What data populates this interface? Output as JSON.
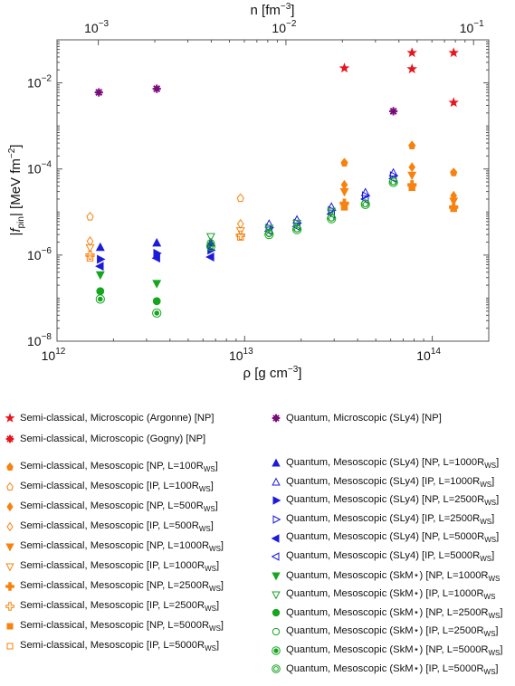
{
  "chart_data": {
    "type": "scatter",
    "title": "",
    "xlabel": "ρ [g cm⁻³]",
    "x2label": "n [fm⁻³]",
    "ylabel": "|f_pin| [MeV fm⁻²]",
    "xscale": "log",
    "yscale": "log",
    "xlim": [
      1000000000000.0,
      200000000000000.0
    ],
    "ylim": [
      1e-08,
      0.1
    ],
    "x_ticks": [
      "10^12",
      "10^13",
      "10^14"
    ],
    "x2_ticks": [
      "10^-3",
      "10^-2",
      "10^-1"
    ],
    "y_ticks": [
      "10^-8",
      "10^-6",
      "10^-4",
      "10^-2"
    ],
    "grid": false,
    "legend_placement": "below",
    "series": [
      {
        "name": "Semi-classical, Microscopic (Argonne) [NP]",
        "color": "#e8141e",
        "marker": "star",
        "filled": true,
        "points": [
          [
            34000000000000.0,
            0.022
          ],
          [
            78000000000000.0,
            0.05
          ],
          [
            78000000000000.0,
            0.021
          ],
          [
            130000000000000.0,
            0.05
          ],
          [
            130000000000000.0,
            0.0035
          ]
        ]
      },
      {
        "name": "Semi-classical, Microscopic (Gogny) [NP]",
        "color": "#e8141e",
        "marker": "asterisk",
        "filled": true,
        "points": []
      },
      {
        "name": "Quantum, Microscopic (SLy4) [NP]",
        "color": "#7b0a7c",
        "marker": "asterisk",
        "filled": true,
        "points": [
          [
            1670000000000.0,
            0.006
          ],
          [
            3400000000000.0,
            0.0073
          ],
          [
            62000000000000.0,
            0.0022
          ]
        ]
      },
      {
        "name": "Semi-classical, Mesoscopic [NP, L=100R_WS]",
        "color": "#f7820f",
        "marker": "diamond-up",
        "filled": true,
        "points": [
          [
            34000000000000.0,
            0.00014
          ],
          [
            78000000000000.0,
            0.00035
          ],
          [
            130000000000000.0,
            8.3e-05
          ]
        ]
      },
      {
        "name": "Semi-classical, Mesoscopic [IP, L=100R_WS]",
        "color": "#f7820f",
        "marker": "diamond-up",
        "filled": false,
        "points": [
          [
            1500000000000.0,
            7.8e-06
          ],
          [
            9500000000000.0,
            2.1e-05
          ]
        ]
      },
      {
        "name": "Semi-classical, Mesoscopic [NP, L=500R_WS]",
        "color": "#f7820f",
        "marker": "diamond",
        "filled": true,
        "points": [
          [
            34000000000000.0,
            4.3e-05
          ],
          [
            78000000000000.0,
            0.00011
          ],
          [
            130000000000000.0,
            2.4e-05
          ]
        ]
      },
      {
        "name": "Semi-classical, Mesoscopic [IP, L=500R_WS]",
        "color": "#f7820f",
        "marker": "diamond",
        "filled": false,
        "points": [
          [
            1500000000000.0,
            2.1e-06
          ],
          [
            9500000000000.0,
            5.3e-06
          ]
        ]
      },
      {
        "name": "Semi-classical, Mesoscopic [NP, L=1000R_WS]",
        "color": "#f7820f",
        "marker": "tri-down",
        "filled": true,
        "points": [
          [
            34000000000000.0,
            3e-05
          ],
          [
            78000000000000.0,
            7.2e-05
          ],
          [
            130000000000000.0,
            1.8e-05
          ]
        ]
      },
      {
        "name": "Semi-classical, Mesoscopic [IP, L=1000R_WS]",
        "color": "#f7820f",
        "marker": "tri-down",
        "filled": false,
        "points": [
          [
            1500000000000.0,
            1.5e-06
          ],
          [
            9500000000000.0,
            3.7e-06
          ]
        ]
      },
      {
        "name": "Semi-classical, Mesoscopic [NP, L=2500R_WS]",
        "color": "#f7820f",
        "marker": "plus",
        "filled": true,
        "points": [
          [
            34000000000000.0,
            1.6e-05
          ],
          [
            78000000000000.0,
            4.3e-05
          ],
          [
            130000000000000.0,
            1.3e-05
          ]
        ]
      },
      {
        "name": "Semi-classical, Mesoscopic [IP, L=2500R_WS]",
        "color": "#f7820f",
        "marker": "plus",
        "filled": false,
        "points": [
          [
            1500000000000.0,
            1e-06
          ],
          [
            9500000000000.0,
            2.9e-06
          ]
        ]
      },
      {
        "name": "Semi-classical, Mesoscopic [NP, L=5000R_WS]",
        "color": "#f7820f",
        "marker": "square",
        "filled": true,
        "points": [
          [
            34000000000000.0,
            1.3e-05
          ],
          [
            78000000000000.0,
            3.7e-05
          ],
          [
            130000000000000.0,
            1.2e-05
          ]
        ]
      },
      {
        "name": "Semi-classical, Mesoscopic [IP, L=5000R_WS]",
        "color": "#f7820f",
        "marker": "square",
        "filled": false,
        "points": [
          [
            1500000000000.0,
            8.5e-07
          ],
          [
            9500000000000.0,
            2.6e-06
          ]
        ]
      },
      {
        "name": "Quantum, Mesoscopic (SLy4) [NP, L=1000R_WS]",
        "color": "#1b1bdc",
        "marker": "tri-up",
        "filled": true,
        "points": [
          [
            1700000000000.0,
            1.5e-06
          ],
          [
            3400000000000.0,
            1.9e-06
          ],
          [
            6600000000000.0,
            1.9e-06
          ]
        ]
      },
      {
        "name": "Quantum, Mesoscopic (SLy4) [IP, L=1000R_WS]",
        "color": "#1b1bdc",
        "marker": "tri-up",
        "filled": false,
        "points": [
          [
            13500000000000.0,
            5.2e-06
          ],
          [
            19000000000000.0,
            6.5e-06
          ],
          [
            29000000000000.0,
            1.3e-05
          ],
          [
            44000000000000.0,
            2.8e-05
          ],
          [
            62000000000000.0,
            8e-05
          ]
        ]
      },
      {
        "name": "Quantum, Mesoscopic (SLy4) [NP, L=2500R_WS]",
        "color": "#1b1bdc",
        "marker": "tri-right",
        "filled": true,
        "points": [
          [
            1700000000000.0,
            8e-07
          ],
          [
            3400000000000.0,
            1.1e-06
          ],
          [
            6600000000000.0,
            1.3e-06
          ]
        ]
      },
      {
        "name": "Quantum, Mesoscopic (SLy4) [IP, L=2500R_WS]",
        "color": "#1b1bdc",
        "marker": "tri-right",
        "filled": false,
        "points": [
          [
            13500000000000.0,
            4.3e-06
          ],
          [
            19000000000000.0,
            5.5e-06
          ],
          [
            29000000000000.0,
            1.1e-05
          ],
          [
            44000000000000.0,
            2.4e-05
          ],
          [
            62000000000000.0,
            7e-05
          ]
        ]
      },
      {
        "name": "Quantum, Mesoscopic (SLy4) [NP, L=5000R_WS]",
        "color": "#1b1bdc",
        "marker": "tri-left",
        "filled": true,
        "points": [
          [
            1700000000000.0,
            5.5e-07
          ],
          [
            3400000000000.0,
            8.5e-07
          ],
          [
            6600000000000.0,
            9e-07
          ]
        ]
      },
      {
        "name": "Quantum, Mesoscopic (SLy4) [IP, L=5000R_WS]",
        "color": "#1b1bdc",
        "marker": "tri-left",
        "filled": false,
        "points": [
          [
            13500000000000.0,
            3.6e-06
          ],
          [
            19000000000000.0,
            4.6e-06
          ],
          [
            29000000000000.0,
            9e-06
          ],
          [
            44000000000000.0,
            2e-05
          ],
          [
            62000000000000.0,
            6e-05
          ]
        ]
      },
      {
        "name": "Quantum, Mesoscopic (SkM*) [NP, L=1000R_WS",
        "color": "#15a51f",
        "marker": "tri-down",
        "filled": true,
        "points": [
          [
            1700000000000.0,
            3.5e-07
          ],
          [
            3400000000000.0,
            2.2e-07
          ]
        ]
      },
      {
        "name": "Quantum, Mesoscopic (SkM*) [IP, L=1000R_WS",
        "color": "#15a51f",
        "marker": "tri-down",
        "filled": false,
        "points": [
          [
            6600000000000.0,
            2.7e-06
          ],
          [
            13500000000000.0,
            4.2e-06
          ],
          [
            19000000000000.0,
            5.5e-06
          ],
          [
            29000000000000.0,
            1.05e-05
          ]
        ]
      },
      {
        "name": "Quantum, Mesoscopic (SkM*) [NP, L=2500R_WS]",
        "color": "#15a51f",
        "marker": "circle",
        "filled": true,
        "points": [
          [
            1700000000000.0,
            1.45e-07
          ],
          [
            3400000000000.0,
            8.5e-08
          ]
        ]
      },
      {
        "name": "Quantum, Mesoscopic (SkM*) [IP, L=2500R_WS]",
        "color": "#15a51f",
        "marker": "circle",
        "filled": false,
        "points": [
          [
            6600000000000.0,
            1.9e-06
          ],
          [
            13500000000000.0,
            3.3e-06
          ],
          [
            19000000000000.0,
            4.2e-06
          ],
          [
            29000000000000.0,
            7.5e-06
          ],
          [
            44000000000000.0,
            1.6e-05
          ],
          [
            62000000000000.0,
            5.2e-05
          ]
        ]
      },
      {
        "name": "Quantum, Mesoscopic (SkM*) [NP, L=5000R_WS]",
        "color": "#15a51f",
        "marker": "circle-dot",
        "filled": true,
        "points": [
          [
            1700000000000.0,
            9.5e-08
          ],
          [
            3400000000000.0,
            4.5e-08
          ]
        ]
      },
      {
        "name": "Quantum, Mesoscopic (SkM*) [IP, L=5000R_WS]",
        "color": "#15a51f",
        "marker": "circle-ring",
        "filled": false,
        "points": [
          [
            6600000000000.0,
            1.6e-06
          ],
          [
            13500000000000.0,
            3e-06
          ],
          [
            19000000000000.0,
            3.9e-06
          ],
          [
            29000000000000.0,
            7e-06
          ],
          [
            44000000000000.0,
            1.5e-05
          ],
          [
            62000000000000.0,
            4.9e-05
          ]
        ]
      }
    ]
  },
  "legend": {
    "left": [
      {
        "pre": "Semi-classical, Microscopic (Argonne) [NP]",
        "sub": "",
        "post": "",
        "series": 0
      },
      {
        "pre": "Semi-classical, Microscopic (Gogny) [NP]",
        "sub": "",
        "post": "",
        "series": 1
      },
      {
        "pre": "Semi-classical, Mesoscopic [NP, L=100R",
        "sub": "WS",
        "post": "]",
        "series": 3
      },
      {
        "pre": "Semi-classical, Mesoscopic [IP, L=100R",
        "sub": "WS",
        "post": "]",
        "series": 4
      },
      {
        "pre": "Semi-classical, Mesoscopic [NP, L=500R",
        "sub": "WS",
        "post": "]",
        "series": 5
      },
      {
        "pre": "Semi-classical, Mesoscopic [IP, L=500R",
        "sub": "WS",
        "post": "]",
        "series": 6
      },
      {
        "pre": "Semi-classical, Mesoscopic [NP, L=1000R",
        "sub": "WS",
        "post": "]",
        "series": 7
      },
      {
        "pre": "Semi-classical, Mesoscopic [IP, L=1000R",
        "sub": "WS",
        "post": "]",
        "series": 8
      },
      {
        "pre": "Semi-classical, Mesoscopic [NP, L=2500R",
        "sub": "WS",
        "post": "]",
        "series": 9
      },
      {
        "pre": "Semi-classical, Mesoscopic [IP, L=2500R",
        "sub": "WS",
        "post": "]",
        "series": 10
      },
      {
        "pre": "Semi-classical, Mesoscopic [NP, L=5000R",
        "sub": "WS",
        "post": "]",
        "series": 11
      },
      {
        "pre": "Semi-classical, Mesoscopic [IP, L=5000R",
        "sub": "WS",
        "post": "]",
        "series": 12
      }
    ],
    "right": [
      {
        "pre": "Quantum, Microscopic (SLy4) [NP]",
        "sub": "",
        "post": "",
        "series": 2
      },
      {
        "pre": "Quantum, Mesoscopic (SLy4) [NP, L=1000R",
        "sub": "WS",
        "post": "]",
        "series": 13
      },
      {
        "pre": "Quantum, Mesoscopic (SLy4) [IP, L=1000R",
        "sub": "WS",
        "post": "]",
        "series": 14
      },
      {
        "pre": "Quantum, Mesoscopic (SLy4) [NP, L=2500R",
        "sub": "WS",
        "post": "]",
        "series": 15
      },
      {
        "pre": "Quantum, Mesoscopic (SLy4) [IP, L=2500R",
        "sub": "WS",
        "post": "]",
        "series": 16
      },
      {
        "pre": "Quantum, Mesoscopic (SLy4) [NP, L=5000R",
        "sub": "WS",
        "post": "]",
        "series": 17
      },
      {
        "pre": "Quantum, Mesoscopic (SLy4) [IP, L=5000R",
        "sub": "WS",
        "post": "]",
        "series": 18
      },
      {
        "pre": "Quantum, Mesoscopic (SkM⋆) [NP, L=1000R",
        "sub": "WS",
        "post": "",
        "series": 19
      },
      {
        "pre": "Quantum, Mesoscopic (SkM⋆) [IP, L=1000R",
        "sub": "WS",
        "post": "",
        "series": 20
      },
      {
        "pre": "Quantum, Mesoscopic (SkM⋆) [NP, L=2500R",
        "sub": "WS",
        "post": "]",
        "series": 21
      },
      {
        "pre": "Quantum, Mesoscopic (SkM⋆) [IP, L=2500R",
        "sub": "WS",
        "post": "]",
        "series": 22
      },
      {
        "pre": "Quantum, Mesoscopic (SkM⋆) [NP, L=5000R",
        "sub": "WS",
        "post": "]",
        "series": 23
      },
      {
        "pre": "Quantum, Mesoscopic (SkM⋆) [IP, L=5000R",
        "sub": "WS",
        "post": "]",
        "series": 24
      }
    ]
  }
}
